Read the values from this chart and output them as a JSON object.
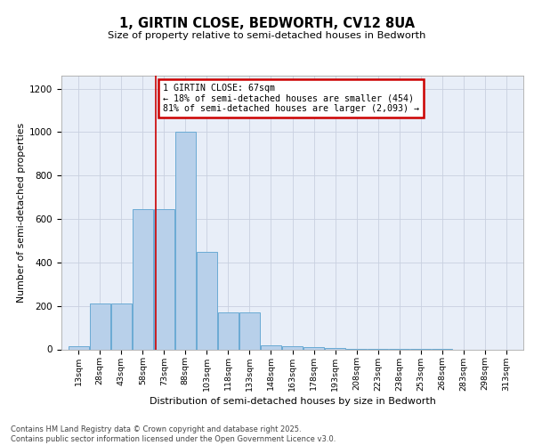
{
  "title": "1, GIRTIN CLOSE, BEDWORTH, CV12 8UA",
  "subtitle": "Size of property relative to semi-detached houses in Bedworth",
  "xlabel": "Distribution of semi-detached houses by size in Bedworth",
  "ylabel": "Number of semi-detached properties",
  "bins": [
    13,
    28,
    43,
    58,
    73,
    88,
    103,
    118,
    133,
    148,
    163,
    178,
    193,
    208,
    223,
    238,
    253,
    268,
    283,
    298,
    313
  ],
  "counts": [
    15,
    210,
    210,
    645,
    645,
    1000,
    450,
    170,
    170,
    20,
    15,
    12,
    5,
    3,
    2,
    1,
    1,
    1,
    0,
    0,
    0
  ],
  "bar_facecolor": "#b8d0ea",
  "bar_edgecolor": "#6aaad4",
  "grid_color": "#c8d0e0",
  "background_color": "#e8eef8",
  "vline_x": 67,
  "vline_color": "#cc0000",
  "annotation_text": "1 GIRTIN CLOSE: 67sqm\n← 18% of semi-detached houses are smaller (454)\n81% of semi-detached houses are larger (2,093) →",
  "annotation_box_color": "#cc0000",
  "footer_text": "Contains HM Land Registry data © Crown copyright and database right 2025.\nContains public sector information licensed under the Open Government Licence v3.0.",
  "ylim": [
    0,
    1260
  ],
  "yticks": [
    0,
    200,
    400,
    600,
    800,
    1000,
    1200
  ],
  "bin_width": 15
}
